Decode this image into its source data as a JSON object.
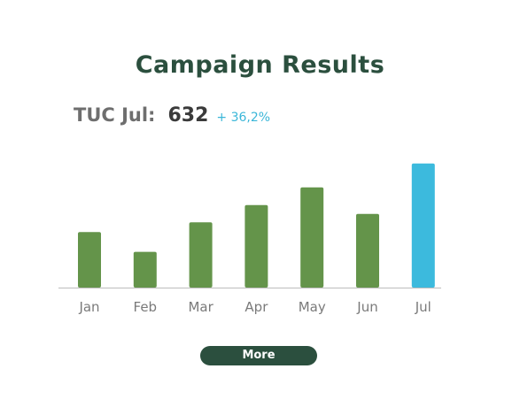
{
  "title": "Campaign Results",
  "kpi": {
    "label": "TUC Jul:",
    "value": "632",
    "change": "+ 36,2%"
  },
  "colors": {
    "title": "#2b4f3e",
    "bar_default": "#64944a",
    "bar_highlight": "#3cbadd",
    "axis": "#bdbdbd",
    "button": "#2b4f3e"
  },
  "chart_data": {
    "type": "bar",
    "categories": [
      "Jan",
      "Feb",
      "Mar",
      "Apr",
      "May",
      "Jun",
      "Jul"
    ],
    "values": [
      283,
      182,
      332,
      420,
      510,
      375,
      632
    ],
    "highlight_index": 6,
    "ylim": [
      0,
      640
    ],
    "grid": false,
    "xlabel": "",
    "ylabel": ""
  },
  "button": {
    "label": "More"
  }
}
